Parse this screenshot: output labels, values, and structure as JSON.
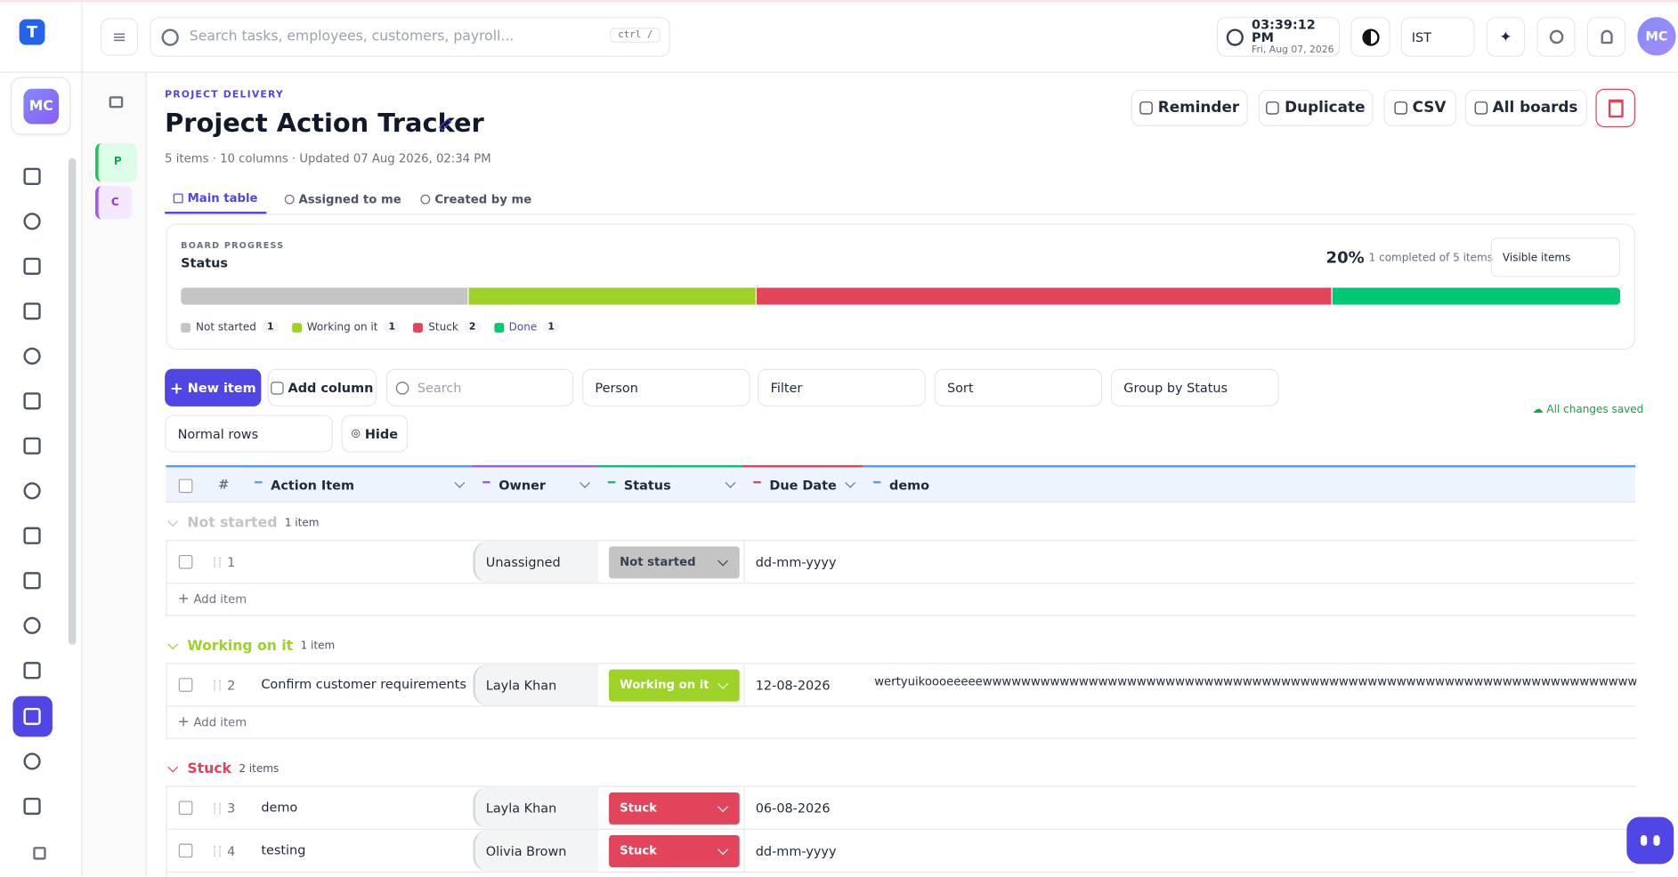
{
  "topbar": {
    "search_placeholder": "Search tasks, employees, customers, payroll...",
    "shortcut": "ctrl /",
    "time": "03:39:12 PM",
    "date": "Fri, Aug 07, 2026",
    "timezone": "IST",
    "avatar": "MC"
  },
  "sidebar": {
    "avatar": "MC"
  },
  "boards_rail": [
    "P",
    "C"
  ],
  "header": {
    "eyebrow": "PROJECT DELIVERY",
    "title": "Project Action Tracker",
    "meta": "5 items · 10 columns · Updated 07 Aug 2026, 02:34 PM",
    "actions": [
      "Reminder",
      "Duplicate",
      "CSV",
      "All boards"
    ]
  },
  "tabs": [
    "Main table",
    "Assigned to me",
    "Created by me"
  ],
  "progress": {
    "eyebrow": "BOARD PROGRESS",
    "title": "Status",
    "percent": "20%",
    "summary": "1 completed of 5 items",
    "scope": "Visible items",
    "segments": [
      {
        "name": "Not started",
        "count": 1,
        "color": "#c4c4c4"
      },
      {
        "name": "Working on it",
        "count": 1,
        "color": "#9cd326"
      },
      {
        "name": "Stuck",
        "count": 2,
        "color": "#e2445c"
      },
      {
        "name": "Done",
        "count": 1,
        "color": "#00c875"
      }
    ]
  },
  "toolbar": {
    "new_item": "New item",
    "add_column": "Add column",
    "search": "Search",
    "person": "Person",
    "filter": "Filter",
    "sort": "Sort",
    "group": "Group by Status",
    "rows": "Normal rows",
    "hide": "Hide",
    "saved": "All changes saved"
  },
  "table": {
    "columns": [
      "#",
      "Action Item",
      "Owner",
      "Status",
      "Due Date",
      "demo"
    ],
    "add_item": "Add item",
    "groups": [
      {
        "name": "Not started",
        "count_label": "1 item",
        "color": "#c4c4c4",
        "rows": [
          {
            "num": "1",
            "owner": "Unassigned",
            "status": "Not started",
            "due": "dd-mm-yyyy"
          }
        ]
      },
      {
        "name": "Working on it",
        "count_label": "1 item",
        "color": "#9cd326",
        "rows": [
          {
            "num": "2",
            "item": "Confirm customer requirements",
            "owner": "Layla Khan",
            "status": "Working on it",
            "due": "12-08-2026",
            "demo": "wertyuikoooeeeeewwwwwwwwwwwwwwwwwwwwwwwwwwwwwwwwwwwwwwwwwwwwwwwwwwwwwwwwwwwwwwwwwwwwwwwwwwwwwwwwwwwwwwwwwww"
          }
        ]
      },
      {
        "name": "Stuck",
        "count_label": "2 items",
        "color": "#e2445c",
        "rows": [
          {
            "num": "3",
            "item": "demo",
            "owner": "Layla Khan",
            "status": "Stuck",
            "due": "06-08-2026"
          },
          {
            "num": "4",
            "item": "testing",
            "owner": "Olivia Brown",
            "status": "Stuck",
            "due": "dd-mm-yyyy"
          }
        ]
      }
    ]
  }
}
